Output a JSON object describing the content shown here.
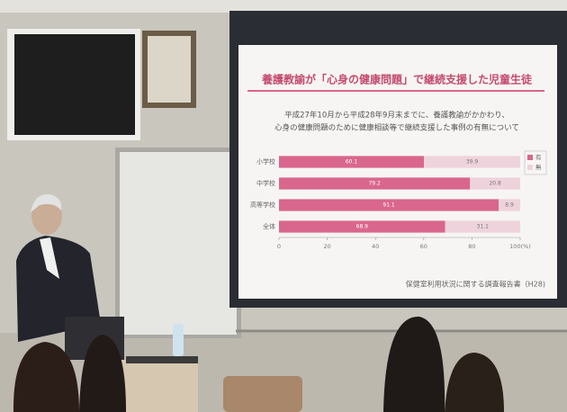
{
  "chart_data": {
    "type": "stacked-barh",
    "title": "養護教諭が「心身の健康問題」で継続支援した児童生徒",
    "subtitle": [
      "平成27年10月から平成28年9月末までに、養護教諭がかかわり、",
      "心身の健康問題のために健康相談等で継続支援した事例の有無について"
    ],
    "categories": [
      "小学校",
      "中学校",
      "高等学校",
      "全体"
    ],
    "series": [
      {
        "name": "有",
        "color": "#d9668d",
        "values": [
          60.1,
          79.2,
          91.1,
          68.9
        ]
      },
      {
        "name": "無",
        "color": "#efd3dc",
        "values": [
          39.9,
          20.8,
          8.9,
          31.1
        ]
      }
    ],
    "xlim": [
      0,
      100
    ],
    "xticks": [
      0,
      20,
      40,
      60,
      80,
      {
        "value": 100,
        "label": "100(%)"
      }
    ],
    "legend": "right",
    "source": "保健室利用状況に関する調査報告書（H28)"
  }
}
